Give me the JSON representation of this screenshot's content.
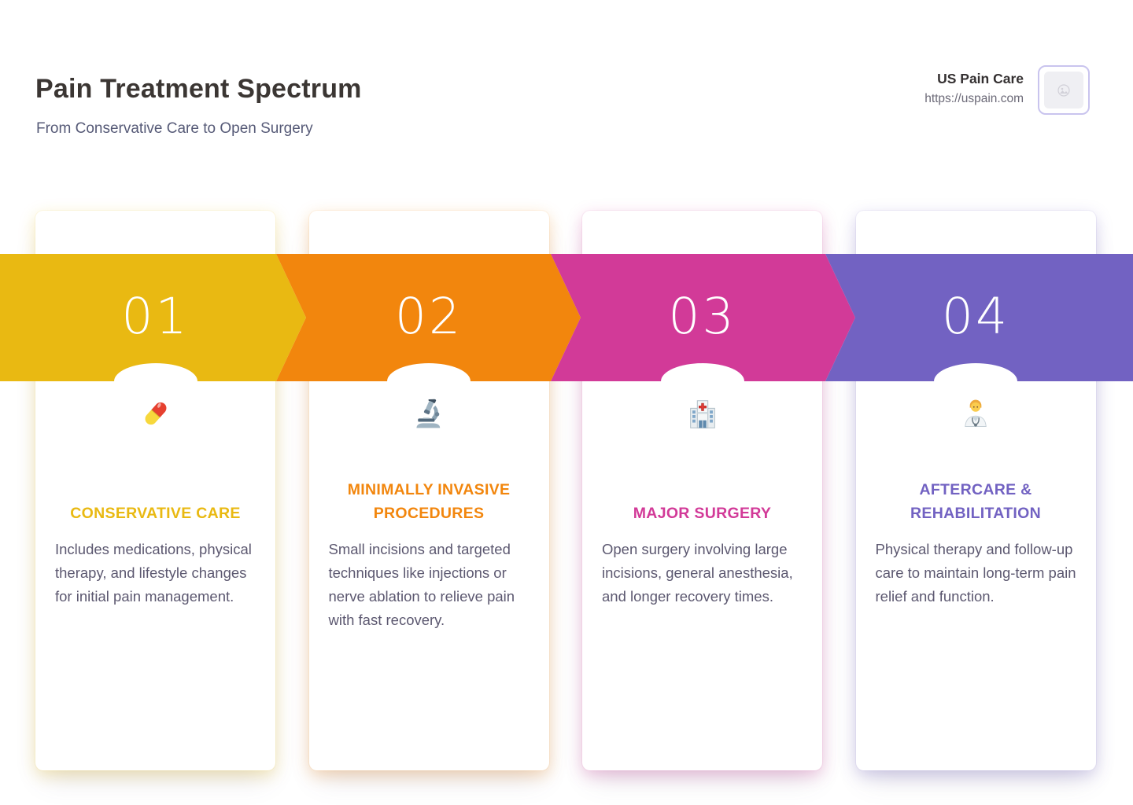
{
  "header": {
    "title": "Pain Treatment Spectrum",
    "subtitle": "From Conservative Care to Open Surgery"
  },
  "brand": {
    "name": "US Pain Care",
    "url": "https://uspain.com",
    "logo": "image-placeholder-icon",
    "logo_border_color": "#c9c4ee"
  },
  "steps": [
    {
      "number": "01",
      "color": "#e9b912",
      "icon": "pill-icon",
      "title": "CONSERVATIVE CARE",
      "description": "Includes medications, physical therapy, and lifestyle changes for initial pain management."
    },
    {
      "number": "02",
      "color": "#f2860d",
      "icon": "microscope-icon",
      "title": "MINIMALLY INVASIVE PROCEDURES",
      "description": "Small incisions and targeted techniques like injections or nerve ablation to relieve pain with fast recovery."
    },
    {
      "number": "03",
      "color": "#d23a98",
      "icon": "hospital-icon",
      "title": "MAJOR SURGERY",
      "description": "Open surgery involving large incisions, general anesthesia, and longer recovery times."
    },
    {
      "number": "04",
      "color": "#7262c2",
      "icon": "health-worker-icon",
      "title": "AFTERCARE & REHABILITATION",
      "description": "Physical therapy and follow-up care to maintain long-term pain relief and function."
    }
  ],
  "text_colors": {
    "heading": "#3b3633",
    "subtitle": "#565a77",
    "body": "#5c5870"
  }
}
